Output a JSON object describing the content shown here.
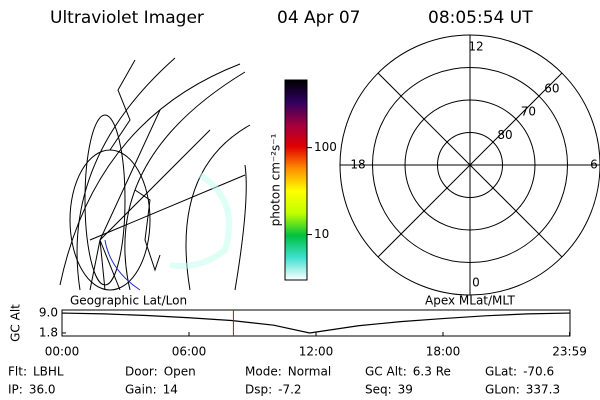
{
  "header": {
    "instrument": "Ultraviolet Imager",
    "date": "04 Apr 07",
    "time": "08:05:54 UT"
  },
  "left_panel": {
    "label": "Geographic Lat/Lon"
  },
  "colorbar": {
    "label": "photon cm⁻²s⁻¹",
    "log": true,
    "clim": [
      3,
      600
    ],
    "ticks": [
      10,
      100
    ],
    "colors": [
      "#ffffff",
      "#40e0d0",
      "#00c040",
      "#c0ff00",
      "#ffff00",
      "#ff9000",
      "#e00000",
      "#a00040",
      "#300060",
      "#000000"
    ]
  },
  "polar": {
    "label": "Apex MLat/MLT",
    "lat_range": [
      50,
      90
    ],
    "lat_rings": [
      60,
      70,
      80
    ],
    "mlt_labels": [
      12,
      18,
      6,
      0
    ]
  },
  "chart_data": {
    "type": "line",
    "ylabel": "GC Alt",
    "x": [
      0,
      2,
      4,
      6,
      8,
      10,
      11.7,
      14,
      16,
      18,
      20,
      22,
      23.98
    ],
    "series": [
      {
        "color": "#000000",
        "values": [
          9.0,
          8.7,
          8.1,
          7.3,
          6.3,
          4.6,
          1.8,
          4.4,
          5.9,
          7.0,
          8.0,
          8.7,
          9.0
        ]
      }
    ],
    "xlim": [
      0,
      24
    ],
    "xticks": [
      {
        "value": 0,
        "label": "00:00"
      },
      {
        "value": 6,
        "label": "06:00"
      },
      {
        "value": 12,
        "label": "12:00"
      },
      {
        "value": 18,
        "label": "18:00"
      },
      {
        "value": 23.98,
        "label": "23:59"
      }
    ],
    "ylim": [
      0.7,
      10.1
    ],
    "yticks": [
      {
        "value": 9,
        "label": "9.0"
      },
      1.8
    ],
    "marker_x": 8.098,
    "marker_color": "#e00000"
  },
  "info": {
    "rows": [
      [
        {
          "label": "Flt:",
          "value": "LBHL"
        },
        {
          "label": "Door:",
          "value": "Open"
        },
        {
          "label": "Mode:",
          "value": "Normal"
        },
        {
          "label": "GC Alt:",
          "value": "6.3 Re"
        },
        {
          "label": "GLat:",
          "value": "-70.6"
        }
      ],
      [
        {
          "label": "IP:",
          "value": "36.0"
        },
        {
          "label": "Gain:",
          "value": "14"
        },
        {
          "label": "Dsp:",
          "value": "-7.2"
        },
        {
          "label": "Seq:",
          "value": "39"
        },
        {
          "label": "GLon:",
          "value": "337.3"
        }
      ]
    ]
  }
}
